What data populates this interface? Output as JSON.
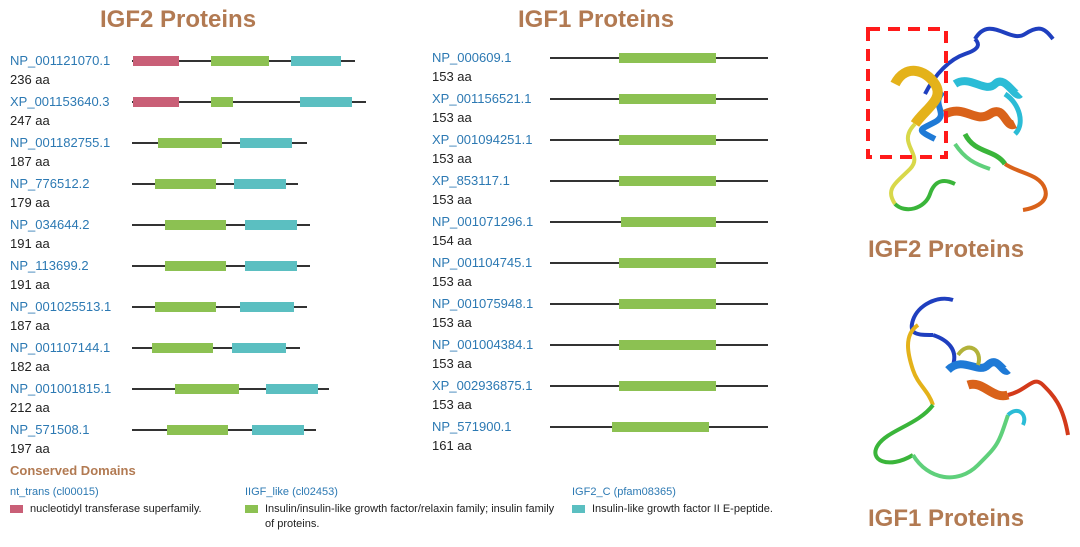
{
  "titles": {
    "igf2_left": "IGF2 Proteins",
    "igf1_mid": "IGF1 Proteins",
    "igf2_right": "IGF2 Proteins",
    "igf1_right": "IGF1 Proteins"
  },
  "colors": {
    "nt_trans": "#c95f77",
    "iigf_like": "#8cc152",
    "igf2_c": "#5bbfc1",
    "title": "#b27a52",
    "accession": "#2c79b3"
  },
  "igf2_proteins": [
    {
      "accession": "NP_001121070.1",
      "length": "236 aa"
    },
    {
      "accession": "XP_001153640.3",
      "length": "247 aa"
    },
    {
      "accession": "NP_001182755.1",
      "length": "187 aa"
    },
    {
      "accession": "NP_776512.2",
      "length": "179 aa"
    },
    {
      "accession": "NP_034644.2",
      "length": "191 aa"
    },
    {
      "accession": "NP_113699.2",
      "length": "191 aa"
    },
    {
      "accession": "NP_001025513.1",
      "length": "187 aa"
    },
    {
      "accession": "NP_001107144.1",
      "length": "182 aa"
    },
    {
      "accession": "NP_001001815.1",
      "length": "212 aa"
    },
    {
      "accession": "NP_571508.1",
      "length": "197 aa"
    }
  ],
  "igf1_proteins": [
    {
      "accession": "NP_000609.1",
      "length": "153 aa"
    },
    {
      "accession": "XP_001156521.1",
      "length": "153 aa"
    },
    {
      "accession": "XP_001094251.1",
      "length": "153 aa"
    },
    {
      "accession": "XP_853117.1",
      "length": "153 aa"
    },
    {
      "accession": "NP_001071296.1",
      "length": "154 aa"
    },
    {
      "accession": "NP_001104745.1",
      "length": "153 aa"
    },
    {
      "accession": "NP_001075948.1",
      "length": "153 aa"
    },
    {
      "accession": "NP_001004384.1",
      "length": "153 aa"
    },
    {
      "accession": "XP_002936875.1",
      "length": "153 aa"
    },
    {
      "accession": "NP_571900.1",
      "length": "161 aa"
    }
  ],
  "legend": {
    "title": "Conserved Domains",
    "items": [
      {
        "name": "nt_trans (cl00015)",
        "desc": "nucleotidyl transferase superfamily."
      },
      {
        "name": "IIGF_like (cl02453)",
        "desc": "Insulin/insulin-like growth factor/relaxin family; insulin family of proteins."
      },
      {
        "name": "IGF2_C (pfam08365)",
        "desc": "Insulin-like growth factor II E-peptide."
      }
    ]
  }
}
